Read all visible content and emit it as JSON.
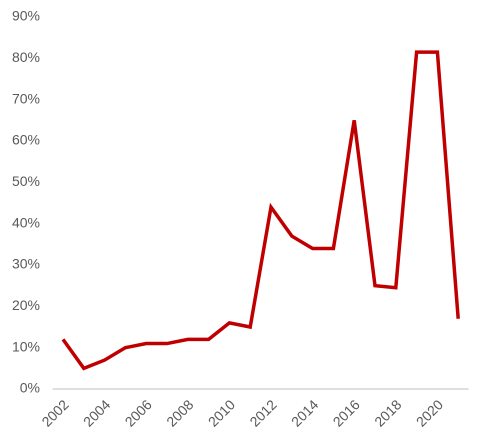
{
  "chart_data": {
    "type": "line",
    "categories": [
      "2002",
      null,
      "2004",
      null,
      "2006",
      null,
      "2008",
      null,
      "2010",
      null,
      "2012",
      null,
      "2014",
      null,
      "2016",
      null,
      "2018",
      null,
      "2020",
      null
    ],
    "series": [
      {
        "color": "#c00000",
        "values": [
          12,
          5,
          7,
          10,
          11,
          11,
          12,
          12,
          16,
          15,
          44,
          37,
          34,
          34,
          65,
          25,
          24.5,
          81.5,
          81.5,
          17
        ]
      }
    ],
    "ylim": [
      0,
      90
    ],
    "yticks": [
      {
        "value": 0,
        "label": "0%"
      },
      {
        "value": 10,
        "label": "10%"
      },
      {
        "value": 20,
        "label": "20%"
      },
      {
        "value": 30,
        "label": "30%"
      },
      {
        "value": 40,
        "label": "40%"
      },
      {
        "value": 50,
        "label": "50%"
      },
      {
        "value": 60,
        "label": "60%"
      },
      {
        "value": 70,
        "label": "70%"
      },
      {
        "value": 80,
        "label": "80%"
      },
      {
        "value": 90,
        "label": "90%"
      }
    ],
    "grid": false
  }
}
